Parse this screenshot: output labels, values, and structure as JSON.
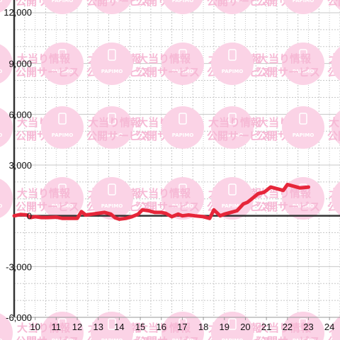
{
  "colors": {
    "series": "#e6263a",
    "grid_major": "#c8c8c8",
    "grid_minor": "#c8c8c8",
    "axis": "#333333",
    "watermark_circle": "#fbd3e6",
    "watermark_text": "#f6b9d5"
  },
  "watermark": {
    "line1": "大当り情報",
    "line2": "公開サービス",
    "badge": "PAPIMO",
    "icon": "phone-icon"
  },
  "chart_data": {
    "type": "line",
    "title": "",
    "xlabel": "",
    "ylabel": "",
    "x_ticks": [
      10,
      11,
      12,
      13,
      14,
      15,
      16,
      17,
      18,
      19,
      20,
      21,
      22,
      23,
      24
    ],
    "y_ticks": [
      -6000,
      -3000,
      0,
      3000,
      6000,
      9000,
      12000
    ],
    "y_tick_labels": [
      "-6,000",
      "-3,000",
      "0",
      "3,000",
      "6,000",
      "9,000",
      "12,000"
    ],
    "xlim": [
      9.0,
      24.5
    ],
    "ylim": [
      -6000,
      12000
    ],
    "grid": true,
    "legend": "none",
    "series": [
      {
        "x": [
          9.0,
          9.3,
          9.6,
          9.8,
          10.0,
          10.3,
          10.6,
          11.0,
          11.3,
          11.6,
          12.0,
          12.2,
          12.4,
          12.7,
          13.0,
          13.3,
          13.6,
          13.8,
          14.0,
          14.3,
          14.6,
          14.9,
          15.1,
          15.4,
          15.7,
          16.0,
          16.2,
          16.5,
          16.8,
          17.0,
          17.3,
          17.6,
          18.0,
          18.3,
          18.5,
          18.8,
          19.0,
          19.3,
          19.6,
          19.9,
          20.1,
          20.3,
          20.6,
          20.9,
          21.2,
          21.5,
          21.8,
          22.0,
          22.3,
          22.6,
          23.0
        ],
        "values": [
          0,
          80,
          50,
          -100,
          -50,
          -100,
          -100,
          -80,
          -150,
          -150,
          -150,
          250,
          50,
          100,
          150,
          200,
          100,
          -120,
          -200,
          -150,
          -50,
          100,
          350,
          300,
          200,
          200,
          150,
          -50,
          100,
          0,
          50,
          0,
          -50,
          -150,
          350,
          0,
          100,
          200,
          300,
          700,
          800,
          1000,
          1300,
          1400,
          1700,
          1600,
          1500,
          1850,
          1750,
          1650,
          1700
        ]
      }
    ]
  }
}
